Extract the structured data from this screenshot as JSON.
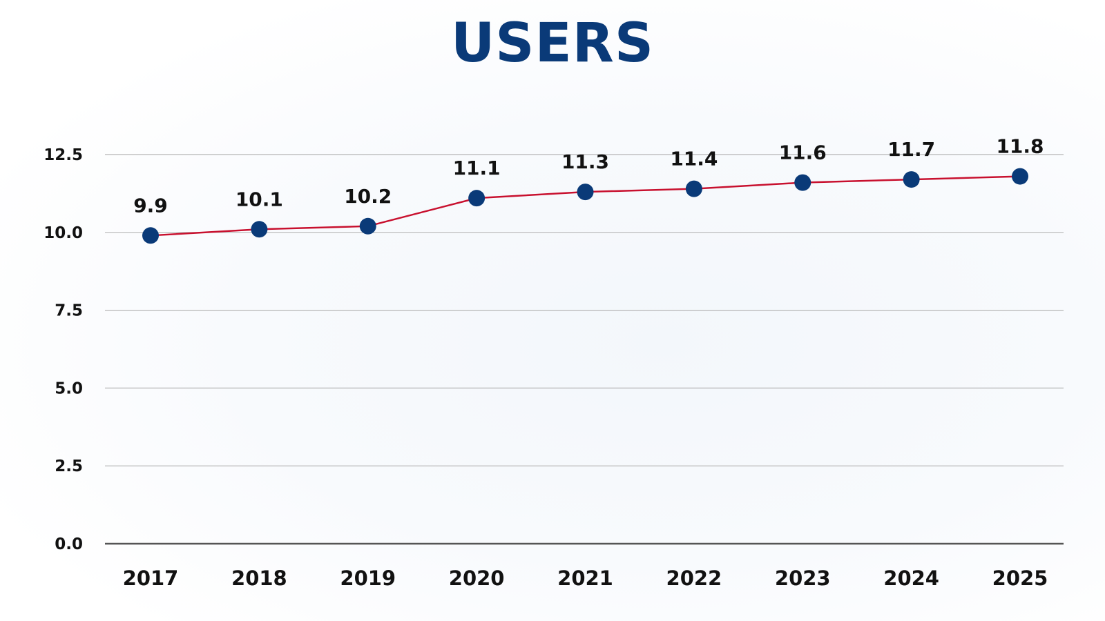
{
  "chart_data": {
    "type": "line",
    "title": "USERS",
    "xlabel": "",
    "ylabel": "",
    "categories": [
      "2017",
      "2018",
      "2019",
      "2020",
      "2021",
      "2022",
      "2023",
      "2024",
      "2025"
    ],
    "series": [
      {
        "name": "Users",
        "values": [
          9.9,
          10.1,
          10.2,
          11.1,
          11.3,
          11.4,
          11.6,
          11.7,
          11.8
        ],
        "line_color": "#c8102e",
        "marker_color": "#0a3a78"
      }
    ],
    "data_labels": [
      "9.9",
      "10.1",
      "10.2",
      "11.1",
      "11.3",
      "11.4",
      "11.6",
      "11.7",
      "11.8"
    ],
    "yticks": [
      0.0,
      2.5,
      5.0,
      7.5,
      10.0,
      12.5
    ],
    "ytick_labels": [
      "0.0",
      "2.5",
      "5.0",
      "7.5",
      "10.0",
      "12.5"
    ],
    "ylim": [
      0,
      12.5
    ],
    "grid": true,
    "legend": "none"
  }
}
